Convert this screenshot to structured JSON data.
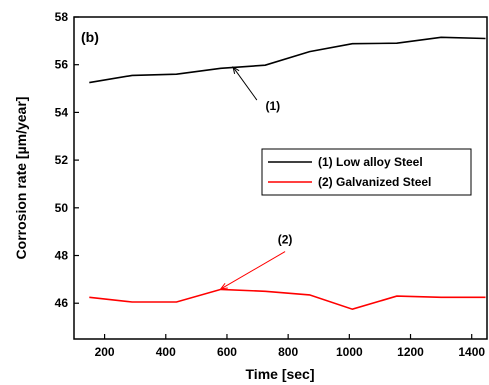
{
  "chart_data": {
    "type": "line",
    "panel_label": "(b)",
    "xlabel": "Time [sec]",
    "ylabel": "Corrosion rate [µm/year]",
    "xlim": [
      100,
      1450
    ],
    "ylim": [
      44.5,
      58
    ],
    "xticks": [
      200,
      400,
      600,
      800,
      1000,
      1200,
      1400
    ],
    "yticks": [
      46,
      48,
      50,
      52,
      54,
      56,
      58
    ],
    "series": [
      {
        "name": "(1) Low alloy Steel",
        "color": "#000000",
        "x": [
          150,
          290,
          435,
          580,
          725,
          870,
          1010,
          1155,
          1300,
          1445
        ],
        "y": [
          55.25,
          55.55,
          55.6,
          55.85,
          55.98,
          56.55,
          56.88,
          56.9,
          57.15,
          57.1
        ]
      },
      {
        "name": "(2) Galvanized Steel",
        "color": "#ff0000",
        "x": [
          150,
          290,
          435,
          580,
          725,
          870,
          1010,
          1155,
          1300,
          1445
        ],
        "y": [
          46.25,
          46.05,
          46.05,
          46.58,
          46.5,
          46.35,
          45.75,
          46.3,
          46.25,
          46.25
        ]
      }
    ],
    "annotations": [
      {
        "text": "(1)",
        "series": 0,
        "point": [
          620,
          55.9
        ],
        "label_at": [
          750,
          54.1
        ]
      },
      {
        "text": "(2)",
        "series": 1,
        "point": [
          580,
          46.6
        ],
        "label_at": [
          790,
          48.5
        ]
      }
    ],
    "legend_position": "center-right",
    "grid": false
  }
}
